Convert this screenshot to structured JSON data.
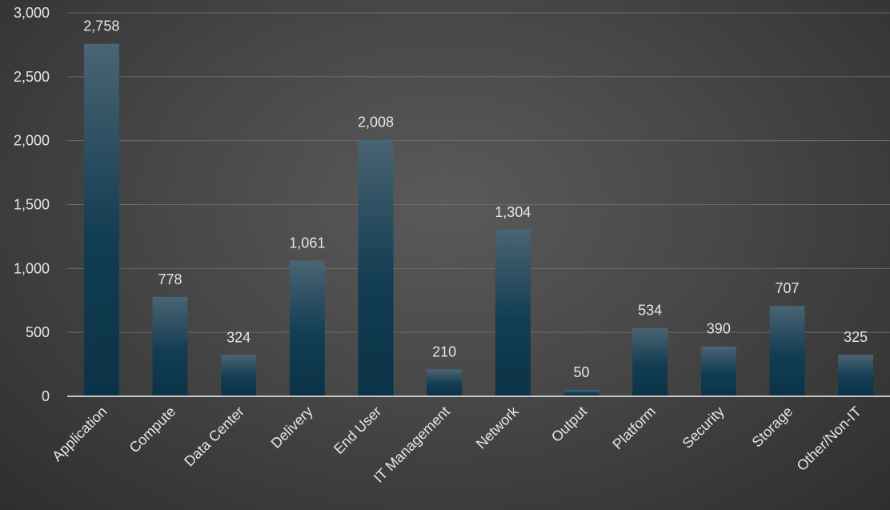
{
  "chart_data": {
    "type": "bar",
    "title": "",
    "xlabel": "",
    "ylabel": "",
    "categories": [
      "Application",
      "Compute",
      "Data Center",
      "Delivery",
      "End User",
      "IT Management",
      "Network",
      "Output",
      "Platform",
      "Security",
      "Storage",
      "Other/Non-IT"
    ],
    "values": [
      2758,
      778,
      324,
      1061,
      2008,
      210,
      1304,
      50,
      534,
      390,
      707,
      325
    ],
    "data_labels": [
      "2,758",
      "778",
      "324",
      "1,061",
      "2,008",
      "210",
      "1,304",
      "50",
      "534",
      "390",
      "707",
      "325"
    ],
    "ylim": [
      0,
      3000
    ],
    "yticks": [
      0,
      500,
      1000,
      1500,
      2000,
      2500,
      3000
    ],
    "ytick_labels": [
      "0",
      "500",
      "1,000",
      "1,500",
      "2,000",
      "2,500",
      "3,000"
    ],
    "grid": true,
    "legend": "none",
    "bar_color_top": "#4a6473",
    "bar_color_bottom": "#0b3347"
  }
}
